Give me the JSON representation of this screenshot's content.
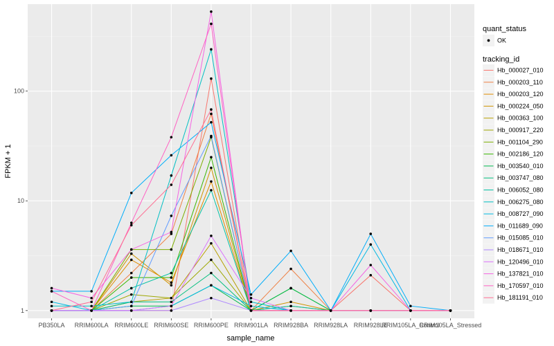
{
  "chart_data": {
    "type": "line",
    "xlabel": "sample_name",
    "ylabel": "FPKM + 1",
    "y_scale": "log10",
    "ylim": [
      0.85,
      620
    ],
    "y_ticks": [
      1,
      10,
      100
    ],
    "y_tick_labels": [
      "1",
      "10",
      "100"
    ],
    "grid": true,
    "legend_placement": "right",
    "categories": [
      "PB350LA",
      "RRIM600LA",
      "RRIM600LE",
      "RRIM600SE",
      "RRIM600PE",
      "RRIM901LA",
      "RRIM928BA",
      "RRIM928LA",
      "RRIM928LE",
      "RRIM105LA_Control",
      "RRIM105LA_Stressed"
    ],
    "shape_legend": {
      "title": "quant_status",
      "entries": [
        "OK"
      ]
    },
    "color_legend_title": "tracking_id",
    "series": [
      {
        "name": "Hb_000027_010",
        "color": "#F8766D",
        "values": [
          1.0,
          1.0,
          1.0,
          1.0,
          130,
          1.0,
          1.0,
          1.0,
          2.1,
          1.0,
          1.0
        ]
      },
      {
        "name": "Hb_000203_110",
        "color": "#EE8044",
        "values": [
          1.0,
          1.0,
          2.2,
          5.0,
          62,
          1.0,
          2.4,
          1.0,
          1.0,
          1.0,
          1.0
        ]
      },
      {
        "name": "Hb_000203_120",
        "color": "#E08B00",
        "values": [
          1.0,
          1.0,
          2.9,
          1.8,
          15,
          1.0,
          1.1,
          1.0,
          1.0,
          1.0,
          1.0
        ]
      },
      {
        "name": "Hb_000224_050",
        "color": "#CF9400",
        "values": [
          1.0,
          1.0,
          3.3,
          1.7,
          20,
          1.0,
          1.2,
          1.0,
          1.0,
          1.0,
          1.0
        ]
      },
      {
        "name": "Hb_000363_100",
        "color": "#B79F00",
        "values": [
          1.0,
          1.0,
          1.2,
          1.3,
          4.1,
          1.0,
          1.0,
          1.0,
          1.0,
          1.0,
          1.0
        ]
      },
      {
        "name": "Hb_000917_220",
        "color": "#9DA700",
        "values": [
          1.0,
          1.0,
          1.4,
          1.3,
          2.9,
          1.0,
          1.0,
          1.0,
          1.0,
          1.0,
          1.0
        ]
      },
      {
        "name": "Hb_001104_290",
        "color": "#7CAE00",
        "values": [
          1.0,
          1.0,
          3.6,
          3.6,
          38,
          1.0,
          1.0,
          1.0,
          1.0,
          1.0,
          1.0
        ]
      },
      {
        "name": "Hb_002186_120",
        "color": "#39B600",
        "values": [
          1.0,
          1.0,
          2.0,
          2.0,
          25,
          1.0,
          1.6,
          1.0,
          1.0,
          1.0,
          1.0
        ]
      },
      {
        "name": "Hb_003540_010",
        "color": "#00BB4E",
        "values": [
          1.0,
          1.0,
          1.1,
          1.1,
          1.7,
          1.0,
          1.6,
          1.0,
          1.0,
          1.0,
          1.0
        ]
      },
      {
        "name": "Hb_003747_080",
        "color": "#00BF7D",
        "values": [
          1.0,
          1.0,
          1.2,
          1.2,
          2.2,
          1.0,
          1.0,
          1.0,
          1.0,
          1.0,
          1.0
        ]
      },
      {
        "name": "Hb_006052_080",
        "color": "#00C1A3",
        "values": [
          1.0,
          1.0,
          1.6,
          2.2,
          12.5,
          1.0,
          1.1,
          1.0,
          1.0,
          1.0,
          1.0
        ]
      },
      {
        "name": "Hb_006275_080",
        "color": "#00BFC4",
        "values": [
          1.1,
          1.1,
          1.2,
          17,
          240,
          1.2,
          1.0,
          1.0,
          1.0,
          1.0,
          1.0
        ]
      },
      {
        "name": "Hb_008727_090",
        "color": "#00B9E3",
        "values": [
          1.2,
          1.0,
          1.0,
          1.1,
          1.7,
          1.1,
          1.0,
          1.0,
          4.0,
          1.0,
          1.0
        ]
      },
      {
        "name": "Hb_011689_090",
        "color": "#00ADFA",
        "values": [
          1.5,
          1.5,
          11.8,
          26,
          52,
          1.4,
          3.5,
          1.0,
          5.0,
          1.1,
          1.0
        ]
      },
      {
        "name": "Hb_015085_010",
        "color": "#619CFF",
        "values": [
          1.0,
          1.0,
          1.1,
          7.3,
          39,
          1.0,
          1.0,
          1.0,
          1.0,
          1.0,
          1.0
        ]
      },
      {
        "name": "Hb_018671_010",
        "color": "#AE87FF",
        "values": [
          1.0,
          1.0,
          1.0,
          1.0,
          1.3,
          1.0,
          1.0,
          1.0,
          1.0,
          1.0,
          1.0
        ]
      },
      {
        "name": "Hb_120496_010",
        "color": "#DB72FB",
        "values": [
          1.0,
          1.0,
          1.0,
          1.1,
          4.8,
          1.3,
          1.0,
          1.0,
          1.0,
          1.0,
          1.0
        ]
      },
      {
        "name": "Hb_137821_010",
        "color": "#F564E3",
        "values": [
          1.6,
          1.3,
          3.6,
          5.2,
          530,
          1.0,
          1.0,
          1.0,
          2.6,
          1.0,
          1.0
        ]
      },
      {
        "name": "Hb_170597_010",
        "color": "#FF61C3",
        "values": [
          1.5,
          1.0,
          6.3,
          38,
          410,
          1.0,
          1.0,
          1.0,
          1.0,
          1.0,
          1.0
        ]
      },
      {
        "name": "Hb_181191_010",
        "color": "#FF6C91",
        "values": [
          1.0,
          1.2,
          6.0,
          14,
          68,
          1.0,
          1.0,
          1.0,
          1.0,
          1.0,
          1.0
        ]
      }
    ]
  }
}
